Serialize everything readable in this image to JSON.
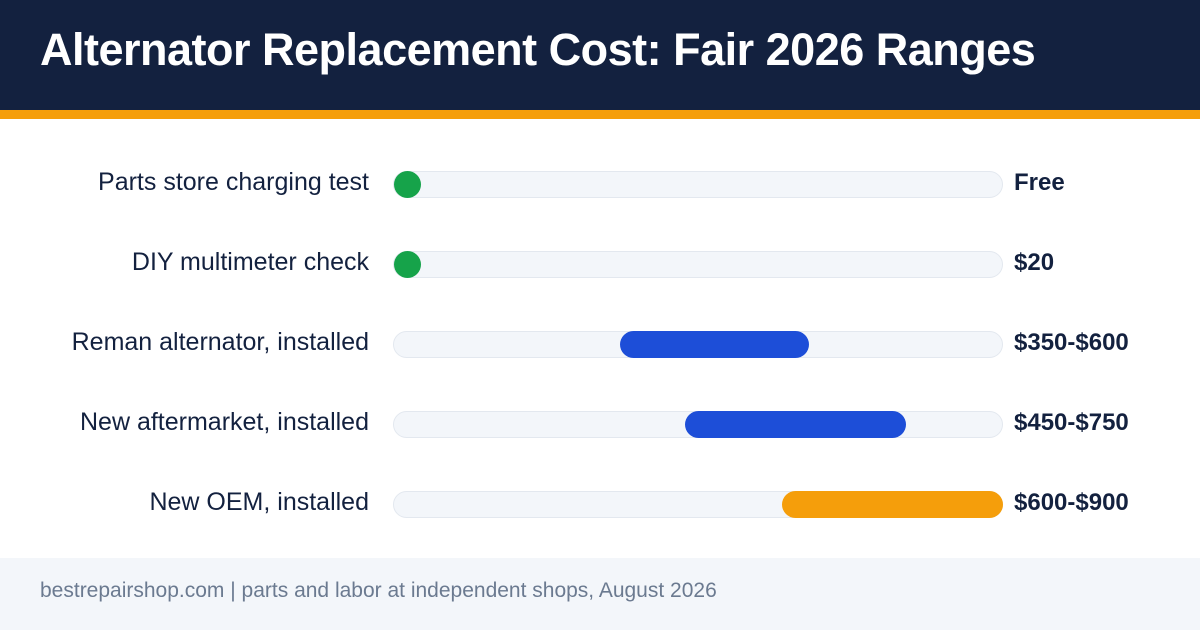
{
  "header": {
    "title": "Alternator Replacement Cost: Fair 2026 Ranges"
  },
  "colors": {
    "header_bg": "#13213f",
    "accent_stripe": "#f59e0b",
    "free_green": "#16a34a",
    "mid_blue": "#1d4ed8",
    "oem_orange": "#f59e0b",
    "track": "#f3f6fa"
  },
  "chart_data": {
    "type": "bar",
    "orientation": "horizontal-range",
    "xlim": [
      0,
      900
    ],
    "grid": false,
    "legend": "none",
    "rows": [
      {
        "label": "Parts store charging test",
        "low": 0,
        "high": 0,
        "value_label": "Free",
        "color": "#16a34a",
        "marker": "dot"
      },
      {
        "label": "DIY multimeter check",
        "low": 20,
        "high": 20,
        "value_label": "$20",
        "color": "#16a34a",
        "marker": "dot"
      },
      {
        "label": "Reman alternator, installed",
        "low": 350,
        "high": 600,
        "value_label": "$350-$600",
        "color": "#1d4ed8",
        "marker": "bar"
      },
      {
        "label": "New aftermarket, installed",
        "low": 450,
        "high": 750,
        "value_label": "$450-$750",
        "color": "#1d4ed8",
        "marker": "bar"
      },
      {
        "label": "New OEM, installed",
        "low": 600,
        "high": 900,
        "value_label": "$600-$900",
        "color": "#f59e0b",
        "marker": "bar"
      }
    ]
  },
  "footer": {
    "source": "bestrepairshop.com | parts and labor at independent shops, August 2026"
  }
}
